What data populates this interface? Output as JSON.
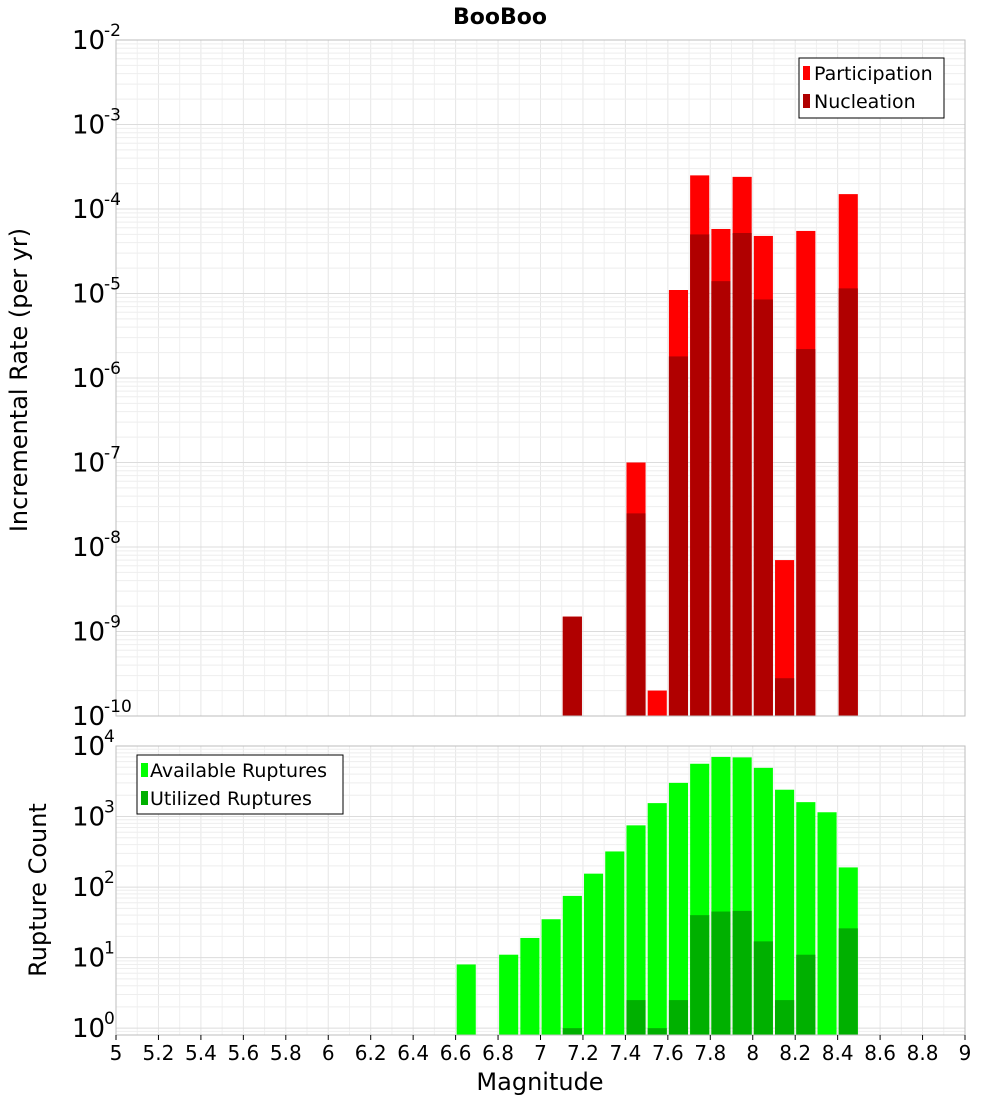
{
  "chart_data": [
    {
      "type": "bar",
      "title": "BooBoo",
      "ylabel": "Incremental Rate (per yr)",
      "xlabel": "",
      "y_scale": "log",
      "ylim": [
        1e-10,
        0.01
      ],
      "xlim": [
        5,
        9
      ],
      "y_tick_exponents": [
        "-10",
        "-9",
        "-8",
        "-7",
        "-6",
        "-5",
        "-4",
        "-3",
        "-2"
      ],
      "grid": true,
      "legend_position": "top-right",
      "colors": {
        "Participation": "#ff0000",
        "Nucleation": "#b00000"
      },
      "x": [
        7.15,
        7.45,
        7.55,
        7.65,
        7.75,
        7.85,
        7.95,
        8.05,
        8.15,
        8.25,
        8.45
      ],
      "series": [
        {
          "name": "Participation",
          "values": [
            1.5e-09,
            1e-07,
            2e-10,
            1.1e-05,
            0.00025,
            5.8e-05,
            0.00024,
            4.8e-05,
            7e-09,
            5.5e-05,
            0.00015
          ]
        },
        {
          "name": "Nucleation",
          "values": [
            1.5e-09,
            2.5e-08,
            null,
            1.8e-06,
            5e-05,
            1.4e-05,
            5.2e-05,
            8.5e-06,
            2.8e-10,
            2.2e-06,
            1.15e-05
          ]
        }
      ]
    },
    {
      "type": "bar",
      "title": "",
      "ylabel": "Rupture Count",
      "xlabel": "Magnitude",
      "y_scale": "log",
      "ylim": [
        0.8,
        10000
      ],
      "xlim": [
        5,
        9
      ],
      "y_tick_exponents": [
        "0",
        "1",
        "2",
        "3",
        "4"
      ],
      "x_tick_labels": [
        "5",
        "5.2",
        "5.4",
        "5.6",
        "5.8",
        "6",
        "6.2",
        "6.4",
        "6.6",
        "6.8",
        "7",
        "7.2",
        "7.4",
        "7.6",
        "7.8",
        "8",
        "8.2",
        "8.4",
        "8.6",
        "8.8",
        "9"
      ],
      "grid": true,
      "legend_position": "top-left",
      "colors": {
        "Available Ruptures": "#00ff00",
        "Utilized Ruptures": "#00b000"
      },
      "x": [
        6.65,
        6.85,
        6.95,
        7.05,
        7.15,
        7.25,
        7.35,
        7.45,
        7.55,
        7.65,
        7.75,
        7.85,
        7.95,
        8.05,
        8.15,
        8.25,
        8.35,
        8.45
      ],
      "series": [
        {
          "name": "Available Ruptures",
          "values": [
            8,
            11,
            19,
            35,
            75,
            155,
            320,
            750,
            1550,
            3000,
            5600,
            7000,
            6900,
            4900,
            2400,
            1600,
            1150,
            190
          ]
        },
        {
          "name": "Utilized Ruptures",
          "values": [
            null,
            null,
            null,
            null,
            1,
            null,
            null,
            2.5,
            1,
            2.5,
            40,
            45,
            46,
            17,
            2.5,
            11,
            null,
            26
          ]
        }
      ]
    }
  ],
  "base_label": "10"
}
